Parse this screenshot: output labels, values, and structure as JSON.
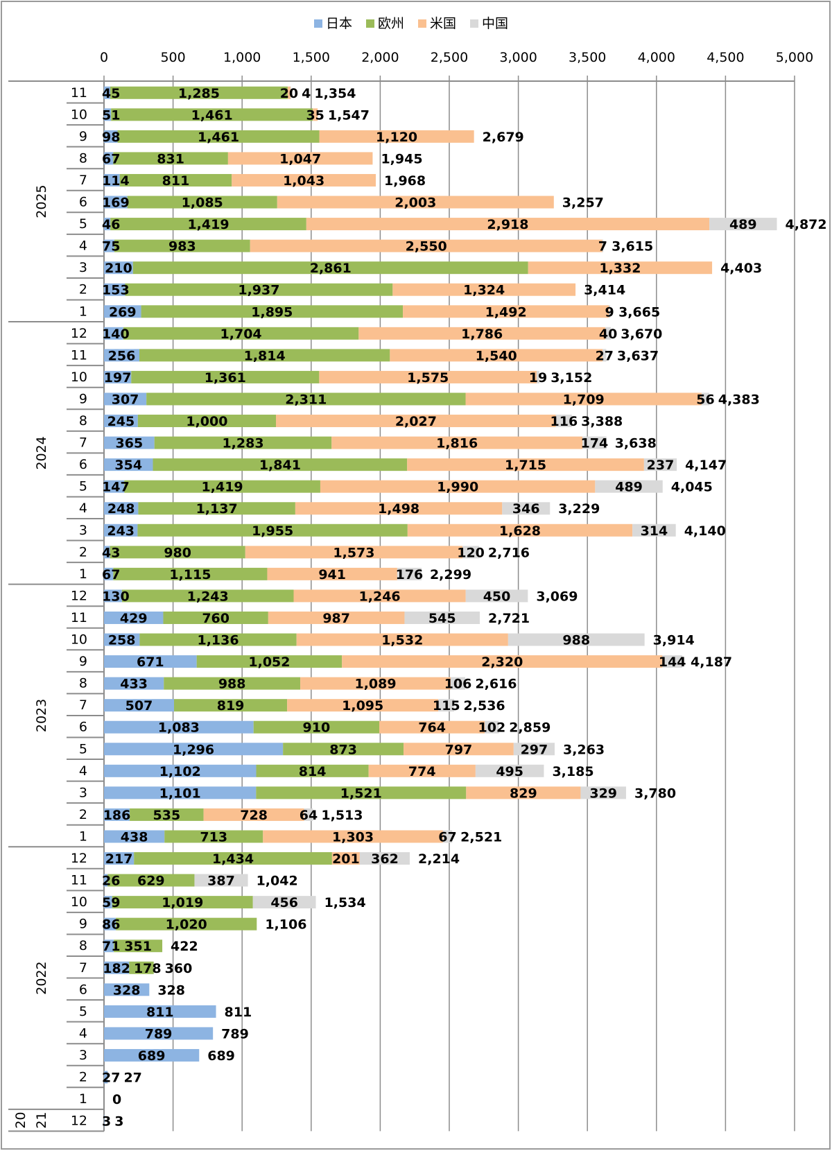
{
  "chart_data": {
    "type": "bar",
    "orientation": "horizontal",
    "stacked": true,
    "xlim": [
      0,
      5000
    ],
    "x_ticks": [
      0,
      500,
      1000,
      1500,
      2000,
      2500,
      3000,
      3500,
      4000,
      4500,
      5000
    ],
    "x_tick_labels": [
      "0",
      "500",
      "1,000",
      "1,500",
      "2,000",
      "2,500",
      "3,000",
      "3,500",
      "4,000",
      "4,500",
      "5,000"
    ],
    "grid": true,
    "legend_position": "top",
    "series": [
      {
        "name": "日本",
        "color": "#8db4e2"
      },
      {
        "name": "欧州",
        "color": "#9bbb59"
      },
      {
        "name": "米国",
        "color": "#fac090"
      },
      {
        "name": "中国",
        "color": "#d9d9d9"
      }
    ],
    "groups": [
      {
        "year": "2025",
        "rows": [
          {
            "month": "11",
            "values": [
              45,
              1285,
              20,
              4
            ],
            "total": "1,354"
          },
          {
            "month": "10",
            "values": [
              51,
              1461,
              35,
              0
            ],
            "total": "1,547"
          },
          {
            "month": "9",
            "values": [
              98,
              1461,
              1120,
              0
            ],
            "total": "2,679"
          },
          {
            "month": "8",
            "values": [
              67,
              831,
              1047,
              0
            ],
            "total": "1,945"
          },
          {
            "month": "7",
            "values": [
              114,
              811,
              1043,
              0
            ],
            "total": "1,968"
          },
          {
            "month": "6",
            "values": [
              169,
              1085,
              2003,
              0
            ],
            "total": "3,257"
          },
          {
            "month": "5",
            "values": [
              46,
              1419,
              2918,
              489
            ],
            "total": "4,872"
          },
          {
            "month": "4",
            "values": [
              75,
              983,
              2550,
              7
            ],
            "total": "3,615"
          },
          {
            "month": "3",
            "values": [
              210,
              2861,
              1332,
              0
            ],
            "total": "4,403"
          },
          {
            "month": "2",
            "values": [
              153,
              1937,
              1324,
              0
            ],
            "total": "3,414"
          },
          {
            "month": "1",
            "values": [
              269,
              1895,
              1492,
              9
            ],
            "total": "3,665"
          }
        ]
      },
      {
        "year": "2024",
        "rows": [
          {
            "month": "12",
            "values": [
              140,
              1704,
              1786,
              40
            ],
            "total": "3,670"
          },
          {
            "month": "11",
            "values": [
              256,
              1814,
              1540,
              27
            ],
            "total": "3,637"
          },
          {
            "month": "10",
            "values": [
              197,
              1361,
              1575,
              19
            ],
            "total": "3,152"
          },
          {
            "month": "9",
            "values": [
              307,
              2311,
              1709,
              56
            ],
            "total": "4,383"
          },
          {
            "month": "8",
            "values": [
              245,
              1000,
              2027,
              116
            ],
            "total": "3,388"
          },
          {
            "month": "7",
            "values": [
              365,
              1283,
              1816,
              174
            ],
            "total": "3,638"
          },
          {
            "month": "6",
            "values": [
              354,
              1841,
              1715,
              237
            ],
            "total": "4,147"
          },
          {
            "month": "5",
            "values": [
              147,
              1419,
              1990,
              489
            ],
            "total": "4,045"
          },
          {
            "month": "4",
            "values": [
              248,
              1137,
              1498,
              346
            ],
            "total": "3,229"
          },
          {
            "month": "3",
            "values": [
              243,
              1955,
              1628,
              314
            ],
            "total": "4,140"
          },
          {
            "month": "2",
            "values": [
              43,
              980,
              1573,
              120
            ],
            "total": "2,716"
          },
          {
            "month": "1",
            "values": [
              67,
              1115,
              941,
              176
            ],
            "total": "2,299"
          }
        ]
      },
      {
        "year": "2023",
        "rows": [
          {
            "month": "12",
            "values": [
              130,
              1243,
              1246,
              450
            ],
            "total": "3,069"
          },
          {
            "month": "11",
            "values": [
              429,
              760,
              987,
              545
            ],
            "total": "2,721"
          },
          {
            "month": "10",
            "values": [
              258,
              1136,
              1532,
              988
            ],
            "total": "3,914"
          },
          {
            "month": "9",
            "values": [
              671,
              1052,
              2320,
              144
            ],
            "total": "4,187"
          },
          {
            "month": "8",
            "values": [
              433,
              988,
              1089,
              106
            ],
            "total": "2,616"
          },
          {
            "month": "7",
            "values": [
              507,
              819,
              1095,
              115
            ],
            "total": "2,536"
          },
          {
            "month": "6",
            "values": [
              1083,
              910,
              764,
              102
            ],
            "total": "2,859"
          },
          {
            "month": "5",
            "values": [
              1296,
              873,
              797,
              297
            ],
            "total": "3,263"
          },
          {
            "month": "4",
            "values": [
              1102,
              814,
              774,
              495
            ],
            "total": "3,185"
          },
          {
            "month": "3",
            "values": [
              1101,
              1521,
              829,
              329
            ],
            "total": "3,780"
          },
          {
            "month": "2",
            "values": [
              186,
              535,
              728,
              64
            ],
            "total": "1,513"
          },
          {
            "month": "1",
            "values": [
              438,
              713,
              1303,
              67
            ],
            "total": "2,521"
          }
        ]
      },
      {
        "year": "2022",
        "rows": [
          {
            "month": "12",
            "values": [
              217,
              1434,
              201,
              362
            ],
            "total": "2,214"
          },
          {
            "month": "11",
            "values": [
              26,
              629,
              0,
              387
            ],
            "total": "1,042"
          },
          {
            "month": "10",
            "values": [
              59,
              1019,
              0,
              456
            ],
            "total": "1,534"
          },
          {
            "month": "9",
            "values": [
              86,
              1020,
              0,
              0
            ],
            "total": "1,106"
          },
          {
            "month": "8",
            "values": [
              71,
              351,
              0,
              0
            ],
            "total": "422"
          },
          {
            "month": "7",
            "values": [
              182,
              178,
              0,
              0
            ],
            "total": "360"
          },
          {
            "month": "6",
            "values": [
              328,
              0,
              0,
              0
            ],
            "total": "328"
          },
          {
            "month": "5",
            "values": [
              811,
              0,
              0,
              0
            ],
            "total": "811"
          },
          {
            "month": "4",
            "values": [
              789,
              0,
              0,
              0
            ],
            "total": "789"
          },
          {
            "month": "3",
            "values": [
              689,
              0,
              0,
              0
            ],
            "total": "689"
          },
          {
            "month": "2",
            "values": [
              27,
              0,
              0,
              0
            ],
            "total": "27"
          },
          {
            "month": "1",
            "values": [
              0,
              0,
              0,
              0
            ],
            "total": "0"
          }
        ]
      },
      {
        "year": "2021",
        "year_label_lines": [
          "20",
          "21"
        ],
        "rows": [
          {
            "month": "12",
            "values": [
              3,
              0,
              0,
              0
            ],
            "total": "3"
          }
        ]
      }
    ]
  }
}
